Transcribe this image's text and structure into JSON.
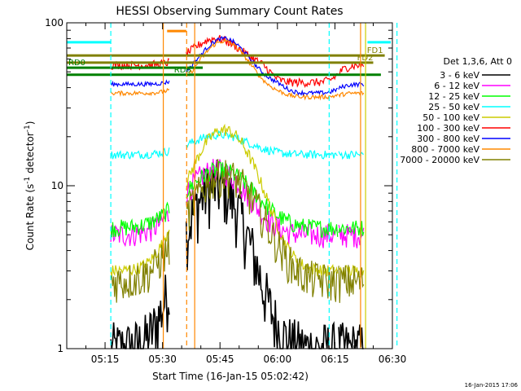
{
  "chart_data": {
    "type": "line",
    "title": "HESSI Observing Summary Count Rates",
    "xlabel": "Start Time (16-Jan-15 05:02:42)",
    "ylabel_main": "Count Rate (s",
    "ylabel_sup1": "-1",
    "ylabel_mid": " detector",
    "ylabel_sup2": "-1",
    "ylabel_end": ")",
    "yscale": "log",
    "ylim": [
      1,
      100
    ],
    "xlim_minutes": [
      5.0,
      90.0
    ],
    "x_ticks": [
      {
        "minute": 15,
        "label": "05:15"
      },
      {
        "minute": 30,
        "label": "05:30"
      },
      {
        "minute": 45,
        "label": "05:45"
      },
      {
        "minute": 60,
        "label": "06:00"
      },
      {
        "minute": 75,
        "label": "06:15"
      },
      {
        "minute": 90,
        "label": "06:30"
      }
    ],
    "y_ticks": [
      {
        "value": 1,
        "label": "1"
      },
      {
        "value": 10,
        "label": "10"
      },
      {
        "value": 100,
        "label": "100"
      }
    ],
    "legend_title": "Det 1,3,6, Att 0",
    "legend_position": "right",
    "series": [
      {
        "name": "3 - 6 keV",
        "color": "#000000"
      },
      {
        "name": "6 - 12 keV",
        "color": "#ff00ff"
      },
      {
        "name": "12 - 25 keV",
        "color": "#00ff00"
      },
      {
        "name": "25 - 50 keV",
        "color": "#00ffff"
      },
      {
        "name": "50 - 100 keV",
        "color": "#cccc00"
      },
      {
        "name": "100 - 300 keV",
        "color": "#ff0000"
      },
      {
        "name": "300 - 800 keV",
        "color": "#0000ff"
      },
      {
        "name": "800 - 7000 keV",
        "color": "#ff8800"
      },
      {
        "name": "7000 - 20000 keV",
        "color": "#808000"
      }
    ],
    "segments": [
      {
        "start": 16.5,
        "end": 31.8
      },
      {
        "start": 36.2,
        "end": 75.8
      },
      {
        "start": 76.0,
        "end": 82.5
      }
    ],
    "flag_lines": [
      {
        "label": "FD1",
        "color": "#808000",
        "y": 63,
        "x0": 5.0,
        "x1": 88.0
      },
      {
        "label": "FD2",
        "color": "#808000",
        "y": 57,
        "x0": 5.0,
        "x1": 85.0
      },
      {
        "label": "RD0",
        "color": "#008000",
        "y": 53,
        "x0": 5.0,
        "x1": 40.5
      },
      {
        "label": "RD6",
        "color": "#008000",
        "y": 48,
        "x0": 5.0,
        "x1": 87.0
      }
    ],
    "vlines": [
      {
        "minute": 16.5,
        "color": "#00ffff",
        "style": "dashed"
      },
      {
        "minute": 30.2,
        "color": "#ff8800",
        "style": "solid"
      },
      {
        "minute": 36.3,
        "color": "#ff8800",
        "style": "dashed"
      },
      {
        "minute": 38.4,
        "color": "#ff8800",
        "style": "solid"
      },
      {
        "minute": 73.5,
        "color": "#00ffff",
        "style": "dashed"
      },
      {
        "minute": 91.2,
        "color": "#00ffff",
        "style": "dashed"
      },
      {
        "minute": 81.7,
        "color": "#ff8800",
        "style": "solid"
      },
      {
        "minute": 83.0,
        "color": "#cccc00",
        "style": "solid"
      }
    ],
    "timestamp": "16-Jan-2015 17:06"
  }
}
